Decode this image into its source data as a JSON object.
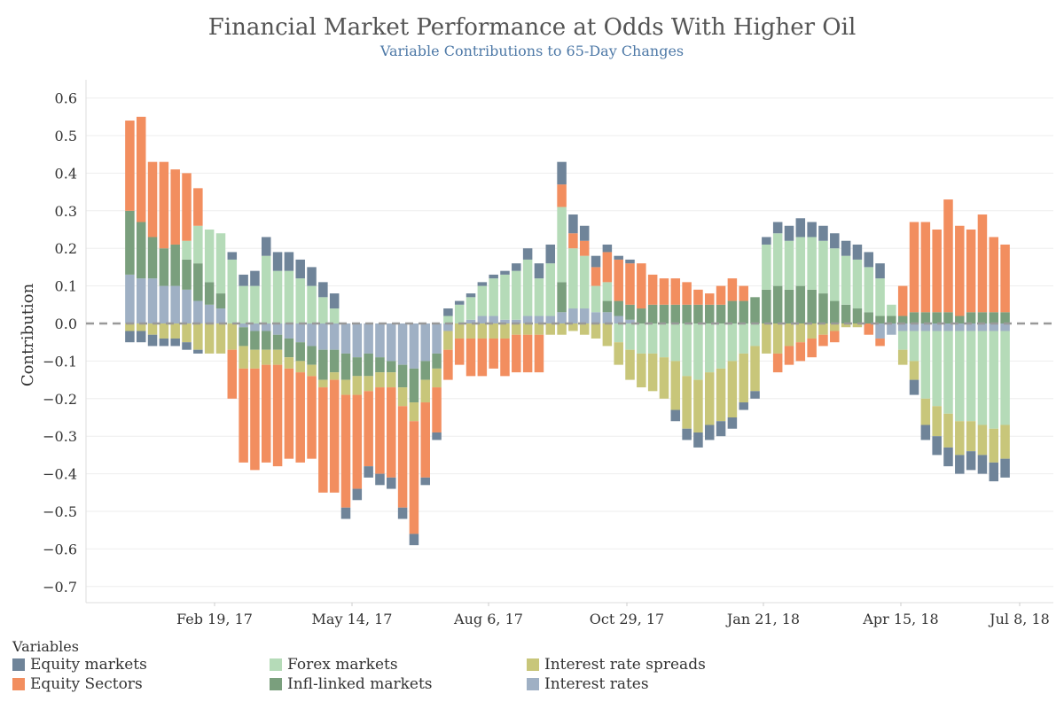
{
  "chart_data": {
    "type": "bar",
    "stacked": true,
    "title": "Financial Market Performance at Odds With Higher Oil",
    "subtitle": "Variable Contributions to 65-Day Changes",
    "xlabel": "",
    "ylabel": "Contribution",
    "ylim": [
      -0.75,
      0.65
    ],
    "y_ticks": [
      0.6,
      0.5,
      0.4,
      0.3,
      0.2,
      0.1,
      0.0,
      -0.1,
      -0.2,
      -0.3,
      -0.4,
      -0.5,
      -0.6,
      -0.7
    ],
    "x_ticks": [
      "Feb 19, 17",
      "May 14, 17",
      "Aug 6, 17",
      "Oct 29, 17",
      "Jan 21, 18",
      "Apr 15, 18",
      "Jul 8, 18"
    ],
    "zero_line": "dashed",
    "grid": true,
    "legend_position": "bottom",
    "legend_title": "Variables",
    "categories": [
      "Jan 1, 17",
      "Jan 8, 17",
      "Jan 15, 17",
      "Jan 22, 17",
      "Jan 29, 17",
      "Feb 5, 17",
      "Feb 12, 17",
      "Feb 19, 17",
      "Feb 26, 17",
      "Mar 5, 17",
      "Mar 12, 17",
      "Mar 19, 17",
      "Mar 26, 17",
      "Apr 2, 17",
      "Apr 9, 17",
      "Apr 16, 17",
      "Apr 23, 17",
      "Apr 30, 17",
      "May 7, 17",
      "May 14, 17",
      "May 21, 17",
      "May 28, 17",
      "Jun 4, 17",
      "Jun 11, 17",
      "Jun 18, 17",
      "Jun 25, 17",
      "Jul 2, 17",
      "Jul 9, 17",
      "Jul 16, 17",
      "Jul 23, 17",
      "Jul 30, 17",
      "Aug 6, 17",
      "Aug 13, 17",
      "Aug 20, 17",
      "Aug 27, 17",
      "Sep 3, 17",
      "Sep 10, 17",
      "Sep 17, 17",
      "Sep 24, 17",
      "Oct 1, 17",
      "Oct 8, 17",
      "Oct 15, 17",
      "Oct 22, 17",
      "Oct 29, 17",
      "Nov 5, 17",
      "Nov 12, 17",
      "Nov 19, 17",
      "Nov 26, 17",
      "Dec 3, 17",
      "Dec 10, 17",
      "Dec 17, 17",
      "Dec 24, 17",
      "Dec 31, 17",
      "Jan 7, 18",
      "Jan 14, 18",
      "Jan 21, 18",
      "Jan 28, 18",
      "Feb 4, 18",
      "Feb 11, 18",
      "Feb 18, 18",
      "Feb 25, 18",
      "Mar 4, 18",
      "Mar 11, 18",
      "Mar 18, 18",
      "Mar 25, 18",
      "Apr 1, 18",
      "Apr 8, 18",
      "Apr 15, 18",
      "Apr 22, 18",
      "Apr 29, 18",
      "May 6, 18",
      "May 13, 18",
      "May 20, 18",
      "May 27, 18",
      "Jun 3, 18",
      "Jun 10, 18",
      "Jun 17, 18",
      "Jun 24, 18"
    ],
    "series": [
      {
        "name": "Equity markets",
        "color": "#6f8499",
        "values": [
          -0.03,
          -0.03,
          -0.03,
          -0.02,
          -0.02,
          -0.02,
          -0.01,
          0.0,
          0.0,
          0.02,
          0.03,
          0.04,
          0.05,
          0.05,
          0.05,
          0.05,
          0.05,
          0.04,
          0.04,
          -0.03,
          -0.03,
          -0.03,
          -0.03,
          -0.03,
          -0.03,
          -0.03,
          -0.02,
          -0.02,
          0.02,
          0.01,
          0.01,
          0.01,
          0.01,
          0.01,
          0.02,
          0.03,
          0.04,
          0.05,
          0.06,
          0.05,
          0.04,
          0.03,
          0.02,
          0.01,
          0.01,
          0.0,
          0.0,
          0.0,
          -0.03,
          -0.03,
          -0.04,
          -0.04,
          -0.04,
          -0.03,
          -0.02,
          -0.02,
          0.02,
          0.03,
          0.04,
          0.05,
          0.04,
          0.04,
          0.04,
          0.04,
          0.04,
          0.04,
          0.04,
          0.0,
          0.0,
          -0.04,
          -0.04,
          -0.05,
          -0.05,
          -0.05,
          -0.05,
          -0.05,
          -0.05,
          -0.05
        ]
      },
      {
        "name": "Equity Sectors",
        "color": "#f28e5f",
        "values": [
          0.24,
          0.28,
          0.2,
          0.23,
          0.2,
          0.18,
          0.1,
          0.0,
          0.0,
          -0.13,
          -0.25,
          -0.27,
          -0.26,
          -0.27,
          -0.24,
          -0.24,
          -0.22,
          -0.28,
          -0.3,
          -0.3,
          -0.25,
          -0.2,
          -0.23,
          -0.24,
          -0.27,
          -0.3,
          -0.2,
          -0.12,
          -0.08,
          -0.07,
          -0.1,
          -0.1,
          -0.08,
          -0.1,
          -0.1,
          -0.1,
          -0.1,
          0.0,
          0.06,
          0.04,
          0.04,
          0.05,
          0.08,
          0.11,
          0.11,
          0.12,
          0.08,
          0.07,
          0.07,
          0.06,
          0.04,
          0.03,
          0.05,
          0.06,
          0.04,
          0.0,
          0.0,
          -0.05,
          -0.05,
          -0.05,
          -0.05,
          -0.03,
          -0.03,
          0.0,
          0.0,
          -0.03,
          -0.02,
          0.0,
          0.08,
          0.24,
          0.24,
          0.22,
          0.3,
          0.24,
          0.22,
          0.26,
          0.2,
          0.18
        ]
      },
      {
        "name": "Forex markets",
        "color": "#b5dbb8",
        "values": [
          0.0,
          0.0,
          0.0,
          0.0,
          0.0,
          0.05,
          0.1,
          0.14,
          0.16,
          0.17,
          0.1,
          0.1,
          0.18,
          0.14,
          0.14,
          0.12,
          0.1,
          0.07,
          0.04,
          0.0,
          0.0,
          0.0,
          0.0,
          0.0,
          0.0,
          0.0,
          0.0,
          0.0,
          0.02,
          0.05,
          0.06,
          0.08,
          0.1,
          0.12,
          0.13,
          0.15,
          0.1,
          0.14,
          0.2,
          0.16,
          0.14,
          0.07,
          0.05,
          -0.05,
          -0.07,
          -0.08,
          -0.08,
          -0.09,
          -0.1,
          -0.14,
          -0.15,
          -0.13,
          -0.12,
          -0.1,
          -0.08,
          -0.06,
          0.12,
          0.14,
          0.13,
          0.13,
          0.14,
          0.14,
          0.14,
          0.13,
          0.13,
          0.12,
          0.1,
          0.03,
          -0.05,
          -0.08,
          -0.18,
          -0.2,
          -0.22,
          -0.24,
          -0.24,
          -0.25,
          -0.26,
          -0.25
        ]
      },
      {
        "name": "Infl-linked markets",
        "color": "#7a9f7d",
        "values": [
          0.17,
          0.15,
          0.11,
          0.1,
          0.11,
          0.08,
          0.1,
          0.06,
          0.04,
          0.0,
          -0.05,
          -0.05,
          -0.05,
          -0.04,
          -0.05,
          -0.05,
          -0.05,
          -0.08,
          -0.06,
          -0.07,
          -0.05,
          -0.06,
          -0.04,
          -0.03,
          -0.06,
          -0.09,
          -0.05,
          -0.04,
          0.0,
          0.0,
          0.0,
          0.0,
          0.0,
          0.0,
          0.0,
          0.0,
          0.0,
          0.0,
          0.08,
          0.0,
          0.0,
          0.0,
          0.03,
          0.04,
          0.04,
          0.04,
          0.05,
          0.05,
          0.05,
          0.05,
          0.05,
          0.05,
          0.05,
          0.06,
          0.06,
          0.07,
          0.09,
          0.1,
          0.09,
          0.1,
          0.09,
          0.08,
          0.06,
          0.05,
          0.04,
          0.03,
          0.02,
          0.02,
          0.02,
          0.03,
          0.03,
          0.03,
          0.03,
          0.02,
          0.03,
          0.03,
          0.03,
          0.03
        ]
      },
      {
        "name": "Interest rate spreads",
        "color": "#c8c67a",
        "values": [
          -0.02,
          -0.02,
          -0.03,
          -0.04,
          -0.04,
          -0.05,
          -0.07,
          -0.08,
          -0.08,
          -0.07,
          -0.06,
          -0.05,
          -0.04,
          -0.04,
          -0.03,
          -0.03,
          -0.03,
          -0.02,
          -0.02,
          -0.04,
          -0.05,
          -0.04,
          -0.04,
          -0.04,
          -0.05,
          -0.05,
          -0.06,
          -0.05,
          -0.05,
          -0.04,
          -0.04,
          -0.04,
          -0.04,
          -0.04,
          -0.03,
          -0.03,
          -0.03,
          -0.03,
          -0.03,
          -0.02,
          -0.03,
          -0.04,
          -0.06,
          -0.06,
          -0.08,
          -0.09,
          -0.1,
          -0.11,
          -0.13,
          -0.14,
          -0.14,
          -0.14,
          -0.14,
          -0.15,
          -0.13,
          -0.12,
          -0.08,
          -0.08,
          -0.06,
          -0.05,
          -0.04,
          -0.03,
          -0.02,
          -0.01,
          -0.01,
          0.0,
          0.0,
          0.0,
          -0.04,
          -0.05,
          -0.07,
          -0.08,
          -0.09,
          -0.09,
          -0.08,
          -0.08,
          -0.09,
          -0.09
        ]
      },
      {
        "name": "Interest rates",
        "color": "#9fb0c4",
        "values": [
          0.13,
          0.12,
          0.12,
          0.1,
          0.1,
          0.09,
          0.06,
          0.05,
          0.04,
          0.0,
          -0.01,
          -0.02,
          -0.02,
          -0.03,
          -0.04,
          -0.05,
          -0.06,
          -0.07,
          -0.07,
          -0.08,
          -0.09,
          -0.08,
          -0.09,
          -0.1,
          -0.11,
          -0.12,
          -0.1,
          -0.08,
          -0.02,
          0.0,
          0.01,
          0.02,
          0.02,
          0.01,
          0.01,
          0.02,
          0.02,
          0.02,
          0.03,
          0.04,
          0.04,
          0.03,
          0.03,
          0.02,
          0.01,
          0.0,
          0.0,
          0.0,
          0.0,
          0.0,
          0.0,
          0.0,
          0.0,
          0.0,
          0.0,
          0.0,
          0.0,
          0.0,
          0.0,
          0.0,
          0.0,
          0.0,
          0.0,
          0.0,
          0.0,
          0.0,
          -0.04,
          -0.03,
          -0.02,
          -0.02,
          -0.02,
          -0.02,
          -0.02,
          -0.02,
          -0.02,
          -0.02,
          -0.02,
          -0.02
        ]
      }
    ]
  }
}
